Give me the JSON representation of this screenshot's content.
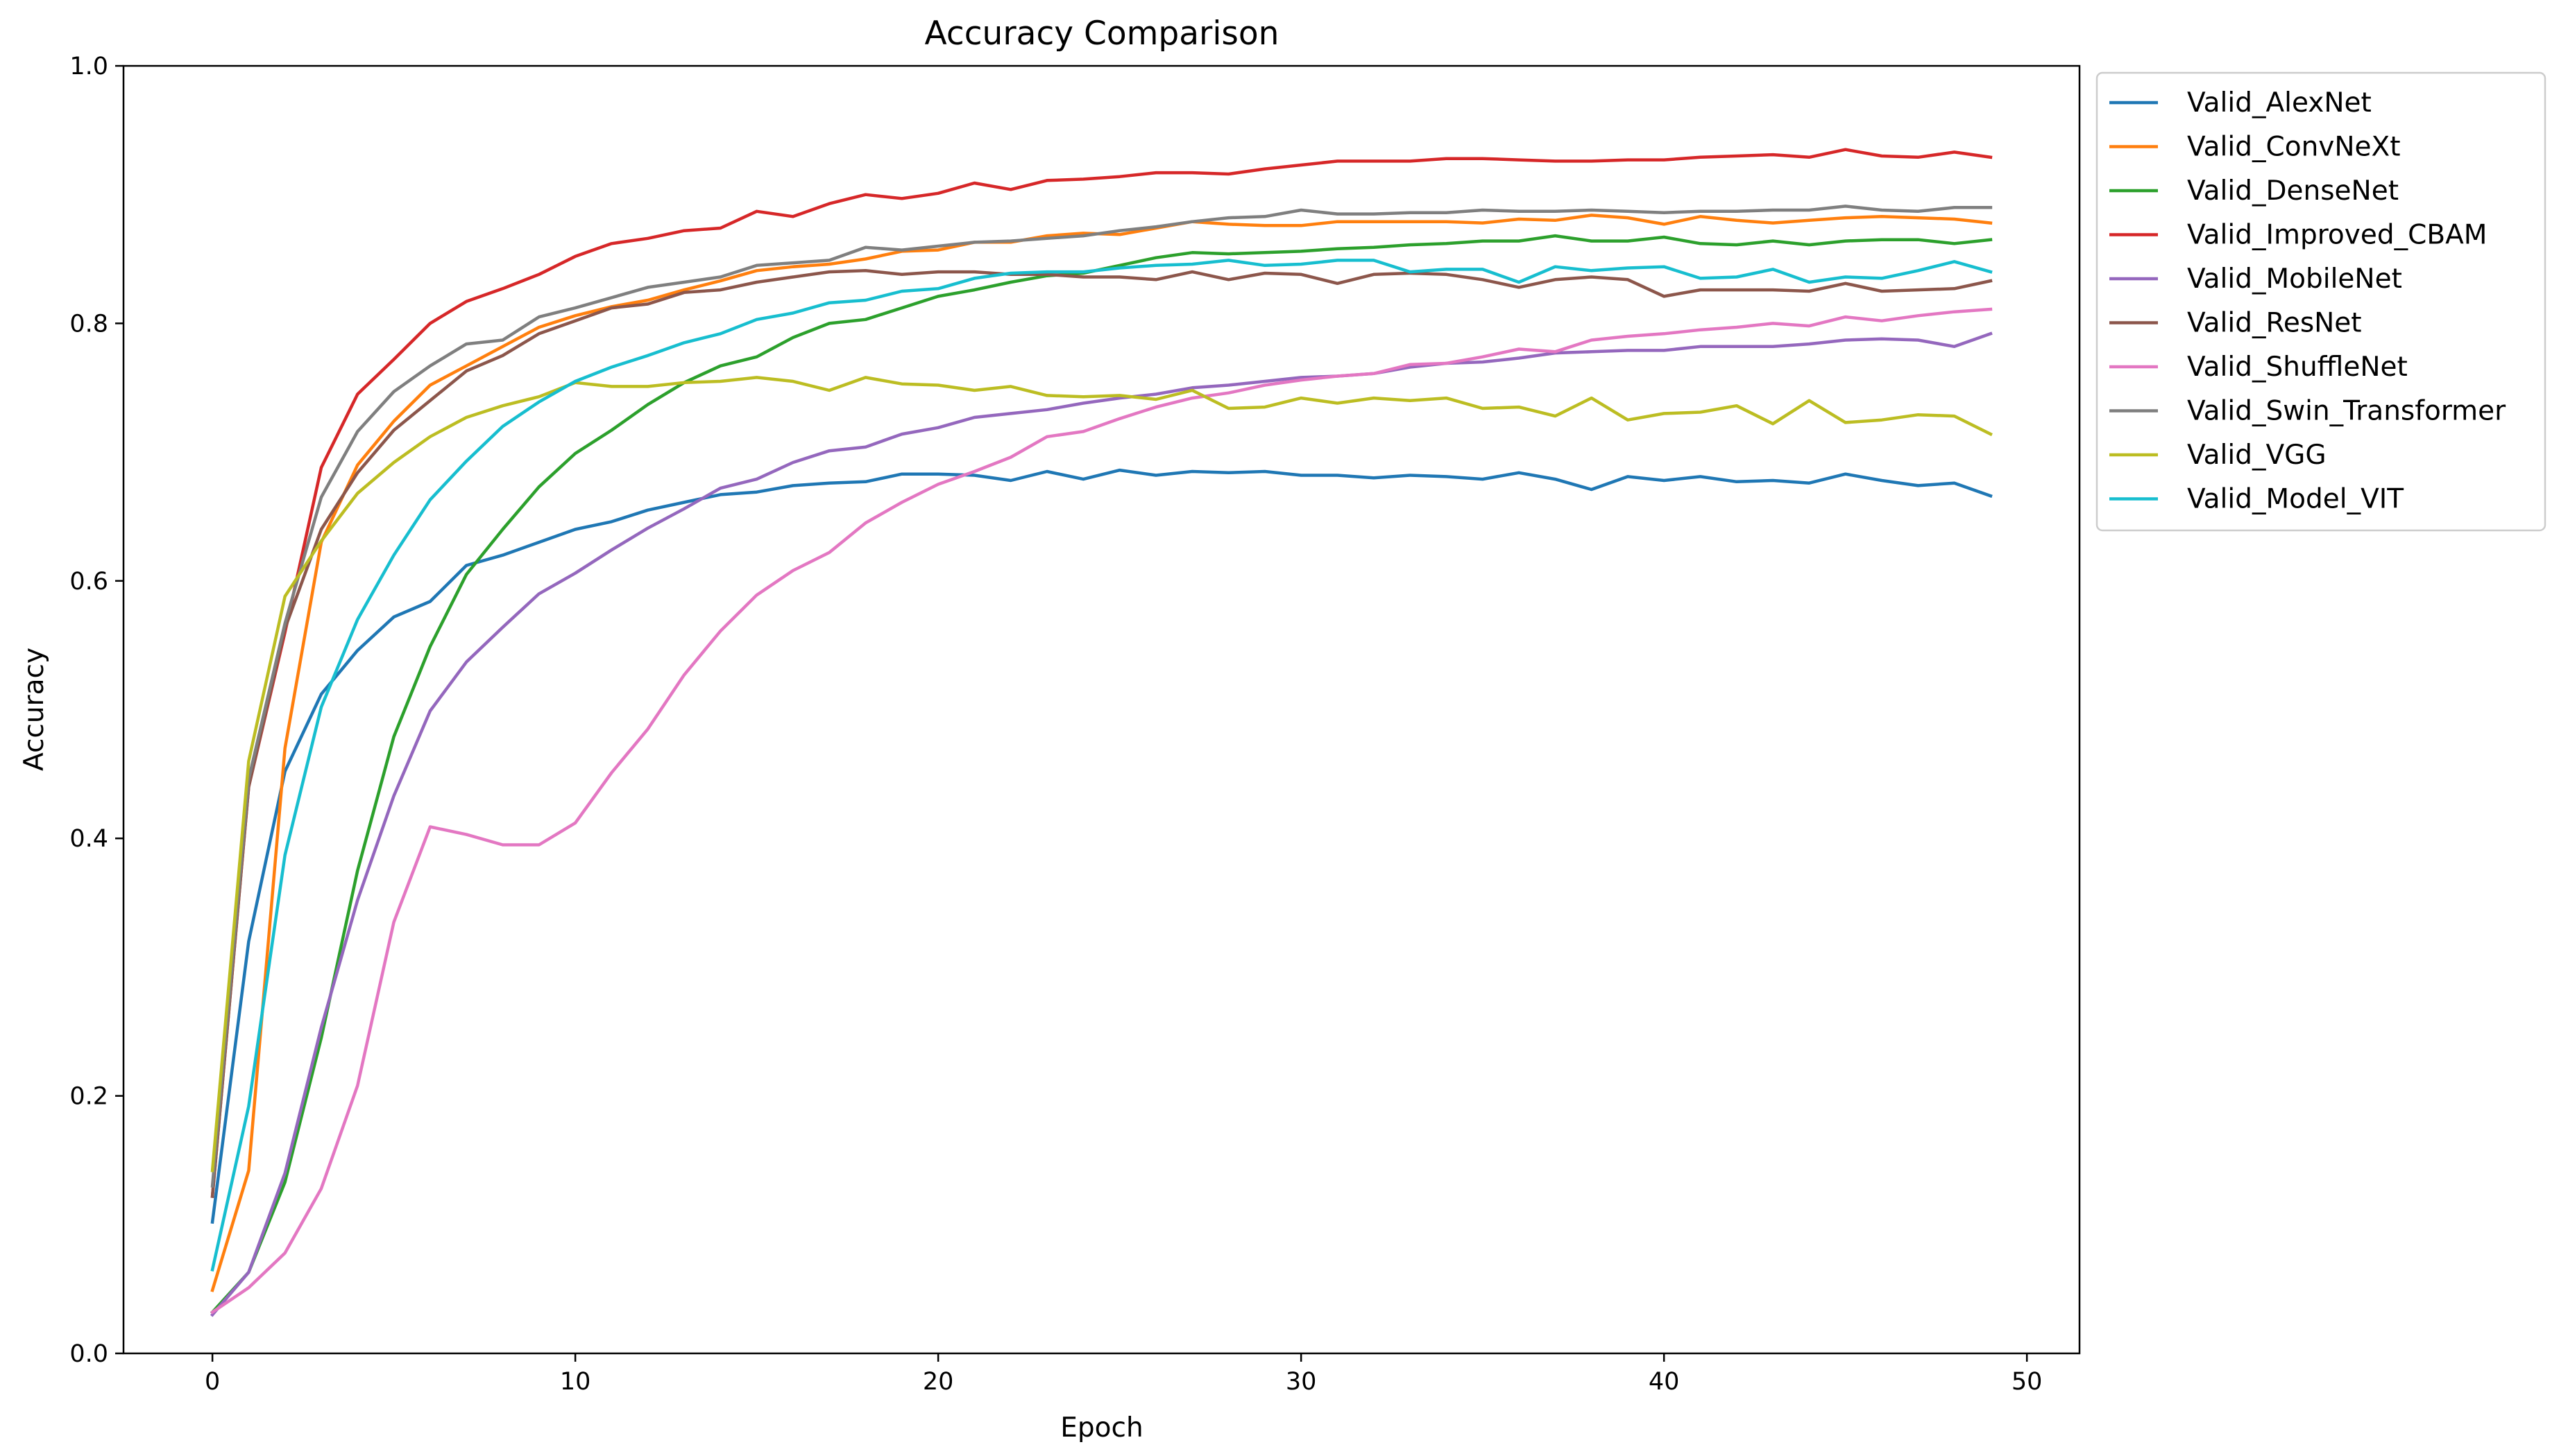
{
  "chart_data": {
    "type": "line",
    "title": "Accuracy Comparison",
    "xlabel": "Epoch",
    "ylabel": "Accuracy",
    "xlim": [
      -2.45,
      51.45
    ],
    "ylim": [
      0.0,
      1.0
    ],
    "xticks": [
      0,
      10,
      20,
      30,
      40,
      50
    ],
    "xtick_labels": [
      "0",
      "10",
      "20",
      "30",
      "40",
      "50"
    ],
    "yticks": [
      0.0,
      0.2,
      0.4,
      0.6,
      0.8,
      1.0
    ],
    "ytick_labels": [
      "0.0",
      "0.2",
      "0.4",
      "0.6",
      "0.8",
      "1.0"
    ],
    "grid": false,
    "legend_position": "outside-right-top",
    "x": [
      0,
      1,
      2,
      3,
      4,
      5,
      6,
      7,
      8,
      9,
      10,
      11,
      12,
      13,
      14,
      15,
      16,
      17,
      18,
      19,
      20,
      21,
      22,
      23,
      24,
      25,
      26,
      27,
      28,
      29,
      30,
      31,
      32,
      33,
      34,
      35,
      36,
      37,
      38,
      39,
      40,
      41,
      42,
      43,
      44,
      45,
      46,
      47,
      48,
      49
    ],
    "series": [
      {
        "name": "Valid_AlexNet",
        "color": "#1f77b4",
        "values": [
          0.102,
          0.32,
          0.452,
          0.512,
          0.546,
          0.572,
          0.584,
          0.612,
          0.62,
          0.63,
          0.64,
          0.646,
          0.655,
          0.661,
          0.667,
          0.669,
          0.674,
          0.676,
          0.677,
          0.683,
          0.683,
          0.682,
          0.678,
          0.685,
          0.679,
          0.686,
          0.682,
          0.685,
          0.684,
          0.685,
          0.682,
          0.682,
          0.68,
          0.682,
          0.681,
          0.679,
          0.684,
          0.679,
          0.671,
          0.681,
          0.678,
          0.681,
          0.677,
          0.678,
          0.676,
          0.683,
          0.678,
          0.674,
          0.676,
          0.666
        ]
      },
      {
        "name": "Valid_ConvNeXt",
        "color": "#ff7f0e",
        "values": [
          0.049,
          0.142,
          0.47,
          0.63,
          0.69,
          0.724,
          0.752,
          0.767,
          0.782,
          0.797,
          0.806,
          0.813,
          0.818,
          0.826,
          0.833,
          0.841,
          0.844,
          0.846,
          0.85,
          0.856,
          0.857,
          0.863,
          0.863,
          0.868,
          0.87,
          0.869,
          0.874,
          0.879,
          0.877,
          0.876,
          0.876,
          0.879,
          0.879,
          0.879,
          0.879,
          0.878,
          0.881,
          0.88,
          0.884,
          0.882,
          0.877,
          0.883,
          0.88,
          0.878,
          0.88,
          0.882,
          0.883,
          0.882,
          0.881,
          0.878
        ]
      },
      {
        "name": "Valid_DenseNet",
        "color": "#2ca02c",
        "values": [
          0.032,
          0.063,
          0.133,
          0.245,
          0.375,
          0.479,
          0.549,
          0.605,
          0.64,
          0.673,
          0.699,
          0.717,
          0.737,
          0.754,
          0.767,
          0.774,
          0.789,
          0.8,
          0.803,
          0.812,
          0.821,
          0.826,
          0.832,
          0.837,
          0.839,
          0.845,
          0.851,
          0.855,
          0.854,
          0.855,
          0.856,
          0.858,
          0.859,
          0.861,
          0.862,
          0.864,
          0.864,
          0.868,
          0.864,
          0.864,
          0.867,
          0.862,
          0.861,
          0.864,
          0.861,
          0.864,
          0.865,
          0.865,
          0.862,
          0.865
        ]
      },
      {
        "name": "Valid_Improved_CBAM",
        "color": "#d62728",
        "values": [
          0.122,
          0.44,
          0.56,
          0.688,
          0.745,
          0.772,
          0.8,
          0.817,
          0.827,
          0.838,
          0.852,
          0.862,
          0.866,
          0.872,
          0.874,
          0.887,
          0.883,
          0.893,
          0.9,
          0.897,
          0.901,
          0.909,
          0.904,
          0.911,
          0.912,
          0.914,
          0.917,
          0.917,
          0.916,
          0.92,
          0.923,
          0.926,
          0.926,
          0.926,
          0.928,
          0.928,
          0.927,
          0.926,
          0.926,
          0.927,
          0.927,
          0.929,
          0.93,
          0.931,
          0.929,
          0.935,
          0.93,
          0.929,
          0.933,
          0.929
        ]
      },
      {
        "name": "Valid_MobileNet",
        "color": "#9467bd",
        "values": [
          0.03,
          0.063,
          0.14,
          0.253,
          0.352,
          0.433,
          0.499,
          0.537,
          0.564,
          0.59,
          0.606,
          0.624,
          0.641,
          0.656,
          0.672,
          0.679,
          0.692,
          0.701,
          0.704,
          0.714,
          0.719,
          0.727,
          0.73,
          0.733,
          0.738,
          0.742,
          0.745,
          0.75,
          0.752,
          0.755,
          0.758,
          0.759,
          0.761,
          0.766,
          0.769,
          0.77,
          0.773,
          0.777,
          0.778,
          0.779,
          0.779,
          0.782,
          0.782,
          0.782,
          0.784,
          0.787,
          0.788,
          0.787,
          0.782,
          0.792
        ]
      },
      {
        "name": "Valid_ResNet",
        "color": "#8c564b",
        "values": [
          0.122,
          0.44,
          0.563,
          0.64,
          0.684,
          0.717,
          0.74,
          0.763,
          0.775,
          0.792,
          0.802,
          0.812,
          0.815,
          0.824,
          0.826,
          0.832,
          0.836,
          0.84,
          0.841,
          0.838,
          0.84,
          0.84,
          0.838,
          0.838,
          0.836,
          0.836,
          0.834,
          0.84,
          0.834,
          0.839,
          0.838,
          0.831,
          0.838,
          0.839,
          0.838,
          0.834,
          0.828,
          0.834,
          0.836,
          0.834,
          0.821,
          0.826,
          0.826,
          0.826,
          0.825,
          0.831,
          0.825,
          0.826,
          0.827,
          0.833
        ]
      },
      {
        "name": "Valid_ShuffleNet",
        "color": "#e377c2",
        "values": [
          0.032,
          0.051,
          0.078,
          0.128,
          0.208,
          0.335,
          0.409,
          0.403,
          0.395,
          0.395,
          0.412,
          0.451,
          0.485,
          0.527,
          0.561,
          0.589,
          0.608,
          0.622,
          0.645,
          0.661,
          0.675,
          0.685,
          0.696,
          0.712,
          0.716,
          0.726,
          0.735,
          0.742,
          0.746,
          0.752,
          0.756,
          0.759,
          0.761,
          0.768,
          0.769,
          0.774,
          0.78,
          0.778,
          0.787,
          0.79,
          0.792,
          0.795,
          0.797,
          0.8,
          0.798,
          0.805,
          0.802,
          0.806,
          0.809,
          0.811
        ]
      },
      {
        "name": "Valid_Swin_Transformer",
        "color": "#7f7f7f",
        "values": [
          0.13,
          0.446,
          0.567,
          0.665,
          0.716,
          0.747,
          0.767,
          0.784,
          0.787,
          0.805,
          0.812,
          0.82,
          0.828,
          0.832,
          0.836,
          0.845,
          0.847,
          0.849,
          0.859,
          0.857,
          0.86,
          0.863,
          0.864,
          0.866,
          0.868,
          0.872,
          0.875,
          0.879,
          0.882,
          0.883,
          0.888,
          0.885,
          0.885,
          0.886,
          0.886,
          0.888,
          0.887,
          0.887,
          0.888,
          0.887,
          0.886,
          0.887,
          0.887,
          0.888,
          0.888,
          0.891,
          0.888,
          0.887,
          0.89,
          0.89
        ]
      },
      {
        "name": "Valid_VGG",
        "color": "#bcbd22",
        "values": [
          0.142,
          0.46,
          0.588,
          0.631,
          0.668,
          0.692,
          0.712,
          0.727,
          0.736,
          0.743,
          0.754,
          0.751,
          0.751,
          0.754,
          0.755,
          0.758,
          0.755,
          0.748,
          0.758,
          0.753,
          0.752,
          0.748,
          0.751,
          0.744,
          0.743,
          0.744,
          0.741,
          0.748,
          0.734,
          0.735,
          0.742,
          0.738,
          0.742,
          0.74,
          0.742,
          0.734,
          0.735,
          0.728,
          0.742,
          0.725,
          0.73,
          0.731,
          0.736,
          0.722,
          0.74,
          0.723,
          0.725,
          0.729,
          0.728,
          0.714
        ]
      },
      {
        "name": "Valid_Model_VIT",
        "color": "#17becf",
        "values": [
          0.065,
          0.192,
          0.387,
          0.502,
          0.57,
          0.62,
          0.663,
          0.693,
          0.72,
          0.739,
          0.755,
          0.766,
          0.775,
          0.785,
          0.792,
          0.803,
          0.808,
          0.816,
          0.818,
          0.825,
          0.827,
          0.835,
          0.839,
          0.84,
          0.84,
          0.843,
          0.845,
          0.846,
          0.849,
          0.845,
          0.846,
          0.849,
          0.849,
          0.84,
          0.842,
          0.842,
          0.832,
          0.844,
          0.841,
          0.843,
          0.844,
          0.835,
          0.836,
          0.842,
          0.832,
          0.836,
          0.835,
          0.841,
          0.848,
          0.84
        ]
      }
    ]
  }
}
